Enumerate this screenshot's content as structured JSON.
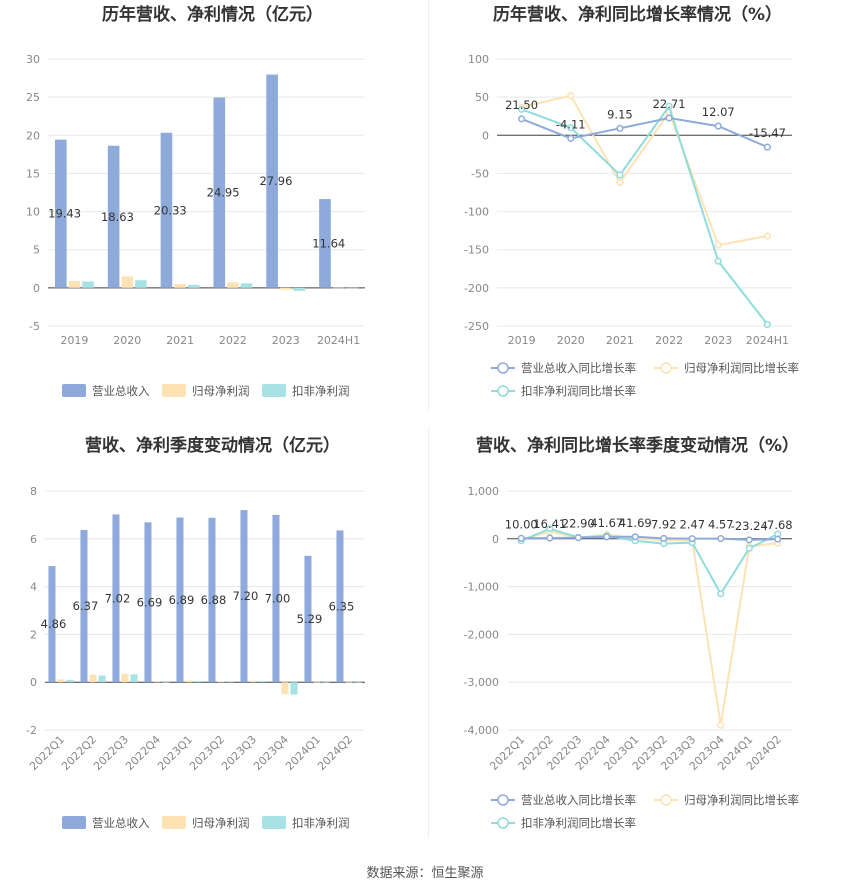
{
  "colors": {
    "revenue": "#8eaadb",
    "net_profit": "#fde2b4",
    "deducted_profit": "#a9e2e4",
    "revenue_line": "#8eaadb",
    "net_line": "#fde2b4",
    "deducted_line": "#8fdcdc",
    "grid": "#e8e8e8",
    "axis": "#444444"
  },
  "source": "数据来源：恒生聚源",
  "chart_data": [
    {
      "type": "bar",
      "title": "历年营收、净利情况（亿元）",
      "categories": [
        "2019",
        "2020",
        "2021",
        "2022",
        "2023",
        "2024H1"
      ],
      "ylim": [
        -5,
        30
      ],
      "yticks": [
        -5,
        0,
        5,
        10,
        15,
        20,
        25,
        30
      ],
      "series": [
        {
          "name": "营业总收入",
          "values": [
            19.43,
            18.63,
            20.33,
            24.95,
            27.96,
            11.64
          ]
        },
        {
          "name": "归母净利润",
          "values": [
            0.9,
            1.5,
            0.5,
            0.7,
            -0.25,
            0.02
          ]
        },
        {
          "name": "扣非净利润",
          "values": [
            0.85,
            1.0,
            0.4,
            0.6,
            -0.4,
            0.01
          ]
        }
      ],
      "labels": [
        "19.43",
        "18.63",
        "20.33",
        "24.95",
        "27.96",
        "11.64"
      ],
      "legend": "bottom",
      "grid": true
    },
    {
      "type": "line",
      "title": "历年营收、净利同比增长率情况（%）",
      "categories": [
        "2019",
        "2020",
        "2021",
        "2022",
        "2023",
        "2024H1"
      ],
      "ylim": [
        -250,
        100
      ],
      "yticks": [
        -250,
        -200,
        -150,
        -100,
        -50,
        0,
        50,
        100
      ],
      "series": [
        {
          "name": "营业总收入同比增长率",
          "values": [
            21.5,
            -4.11,
            9.15,
            22.71,
            12.07,
            -15.47
          ]
        },
        {
          "name": "归母净利润同比增长率",
          "values": [
            37,
            52,
            -62,
            30,
            -144,
            -132
          ]
        },
        {
          "name": "扣非净利润同比增长率",
          "values": [
            34,
            10,
            -52,
            38,
            -165,
            -248
          ]
        }
      ],
      "labels": [
        "21.50",
        "-4.11",
        "9.15",
        "22.71",
        "12.07",
        "-15.47"
      ],
      "legend": "bottom",
      "grid": true
    },
    {
      "type": "bar",
      "title": "营收、净利季度变动情况（亿元）",
      "categories": [
        "2022Q1",
        "2022Q2",
        "2022Q3",
        "2022Q4",
        "2023Q1",
        "2023Q2",
        "2023Q3",
        "2023Q4",
        "2024Q1",
        "2024Q2"
      ],
      "ylim": [
        -2,
        8
      ],
      "yticks": [
        -2,
        0,
        2,
        4,
        6,
        8
      ],
      "series": [
        {
          "name": "营业总收入",
          "values": [
            4.86,
            6.37,
            7.02,
            6.69,
            6.89,
            6.88,
            7.2,
            7.0,
            5.29,
            6.35
          ]
        },
        {
          "name": "归母净利润",
          "values": [
            0.12,
            0.32,
            0.35,
            0.02,
            0.07,
            0.03,
            0.06,
            -0.5,
            0.01,
            0.01
          ]
        },
        {
          "name": "扣非净利润",
          "values": [
            0.1,
            0.28,
            0.33,
            0.01,
            0.05,
            0.02,
            0.05,
            -0.52,
            0.005,
            0.005
          ]
        }
      ],
      "labels": [
        "4.86",
        "6.37",
        "7.02",
        "6.69",
        "6.89",
        "6.88",
        "7.20",
        "7.00",
        "5.29",
        "6.35"
      ],
      "legend": "bottom",
      "grid": true
    },
    {
      "type": "line",
      "title": "营收、净利同比增长率季度变动情况（%）",
      "categories": [
        "2022Q1",
        "2022Q2",
        "2022Q3",
        "2022Q4",
        "2023Q1",
        "2023Q2",
        "2023Q3",
        "2023Q4",
        "2024Q1",
        "2024Q2"
      ],
      "ylim": [
        -4000,
        1000
      ],
      "yticks": [
        -4000,
        -3000,
        -2000,
        -1000,
        0,
        1000
      ],
      "series": [
        {
          "name": "营业总收入同比增长率",
          "values": [
            10.0,
            16.41,
            22.9,
            41.67,
            41.69,
            7.92,
            2.47,
            4.57,
            -23.24,
            -7.68
          ]
        },
        {
          "name": "归母净利润同比增长率",
          "values": [
            -20,
            150,
            20,
            90,
            10,
            -30,
            -40,
            -3900,
            -160,
            -90
          ]
        },
        {
          "name": "扣非净利润同比增长率",
          "values": [
            -40,
            210,
            30,
            60,
            -40,
            -100,
            -80,
            -1150,
            -200,
            100
          ]
        }
      ],
      "labels": [
        "10.00",
        "16.41",
        "22.90",
        "41.67",
        "41.69",
        "7.92",
        "2.47",
        "4.57",
        "-23.24",
        "-7.68"
      ],
      "legend": "bottom",
      "grid": true
    }
  ]
}
